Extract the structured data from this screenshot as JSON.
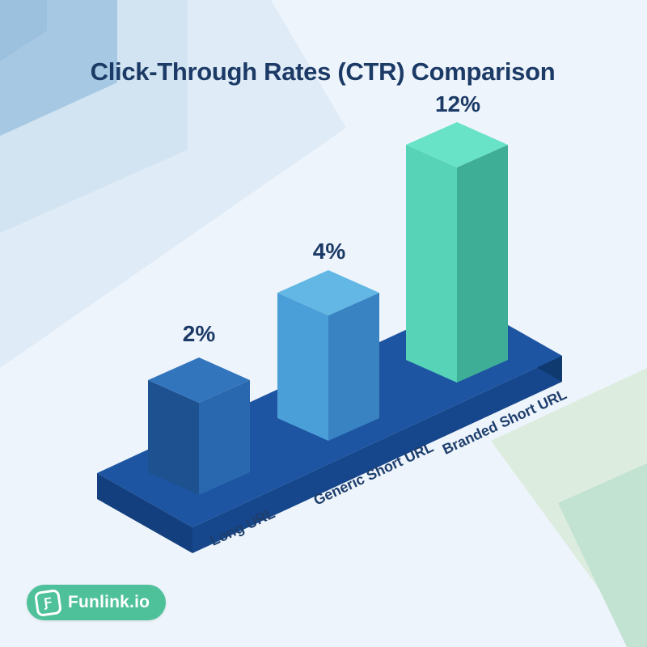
{
  "title": "Click-Through Rates (CTR) Comparison",
  "chart_data": {
    "type": "bar",
    "style": "isometric-3d",
    "title": "Click-Through Rates (CTR) Comparison",
    "categories": [
      "Long URL",
      "Generic Short URL",
      "Branded Short URL"
    ],
    "values": [
      2,
      4,
      12
    ],
    "value_labels": [
      "2%",
      "4%",
      "12%"
    ],
    "unit": "%",
    "ylim": [
      0,
      12
    ],
    "grid": false,
    "legend": false,
    "bar_colors": [
      {
        "top": "#3375bd",
        "left": "#1e5190",
        "right": "#2968ae"
      },
      {
        "top": "#63b7e4",
        "left": "#4b9fd8",
        "right": "#3983c3"
      },
      {
        "top": "#68e3c8",
        "left": "#57d4b8",
        "right": "#3fae97"
      }
    ],
    "platform_color": {
      "top": "#1d55a2",
      "front": "#16468b",
      "left": "#133f7e",
      "end": "#0e3a70"
    }
  },
  "branding": {
    "logo_text": "Funlink.io",
    "logo_icon_glyph": "Ƒ",
    "pill_color": "#4fc19a"
  },
  "colors": {
    "background": "#eef4fb",
    "text_navy": "#1c3a66",
    "decor": {
      "top_left_outer": "#dfebf6",
      "top_left_mid": "#d2e4f1",
      "top_left_inner": "#a6c8e3",
      "top_left_corner": "#9cc1df",
      "bottom_right_outer": "#dcecdf",
      "bottom_right_inner": "#c2e2d2"
    }
  }
}
